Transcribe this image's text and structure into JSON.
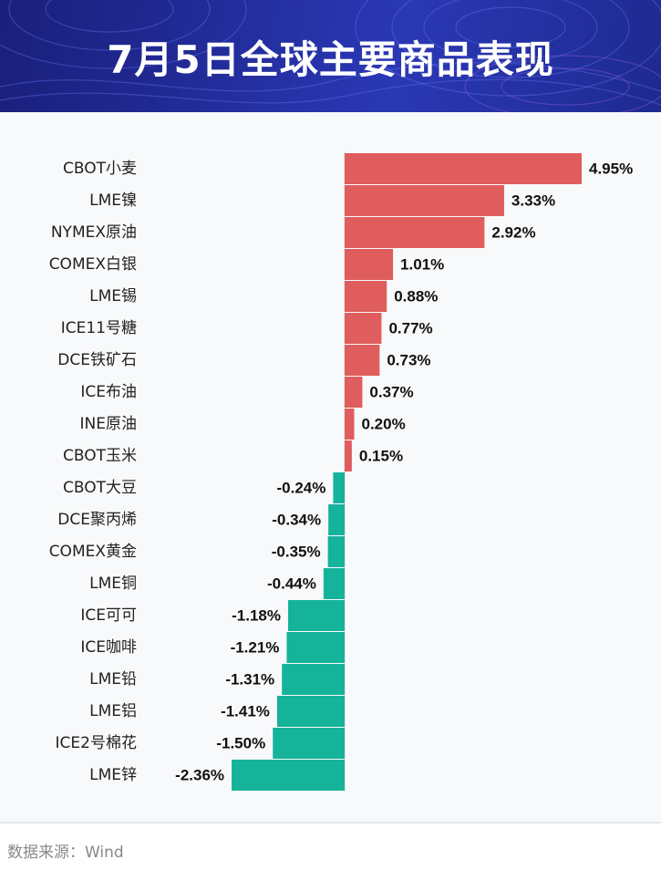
{
  "header": {
    "title": "7月5日全球主要商品表现"
  },
  "footer": {
    "source": "数据来源：Wind"
  },
  "colors": {
    "positive": "#e05d5d",
    "negative": "#16b39b",
    "header_bg": "#232d9c"
  },
  "chart_data": {
    "type": "bar",
    "orientation": "horizontal",
    "title": "7月5日全球主要商品表现",
    "unit": "%",
    "categories": [
      "CBOT小麦",
      "LME镍",
      "NYMEX原油",
      "COMEX白银",
      "LME锡",
      "ICE11号糖",
      "DCE铁矿石",
      "ICE布油",
      "INE原油",
      "CBOT玉米",
      "CBOT大豆",
      "DCE聚丙烯",
      "COMEX黄金",
      "LME铜",
      "ICE可可",
      "ICE咖啡",
      "LME铅",
      "LME铝",
      "ICE2号棉花",
      "LME锌"
    ],
    "values": [
      4.95,
      3.33,
      2.92,
      1.01,
      0.88,
      0.77,
      0.73,
      0.37,
      0.2,
      0.15,
      -0.24,
      -0.34,
      -0.35,
      -0.44,
      -1.18,
      -1.21,
      -1.31,
      -1.41,
      -1.5,
      -2.36
    ],
    "value_labels": [
      "4.95%",
      "3.33%",
      "2.92%",
      "1.01%",
      "0.88%",
      "0.77%",
      "0.73%",
      "0.37%",
      "0.20%",
      "0.15%",
      "-0.24%",
      "-0.34%",
      "-0.35%",
      "-0.44%",
      "-1.18%",
      "-1.21%",
      "-1.31%",
      "-1.41%",
      "-1.50%",
      "-2.36%"
    ],
    "xlim": [
      -2.36,
      4.95
    ]
  }
}
